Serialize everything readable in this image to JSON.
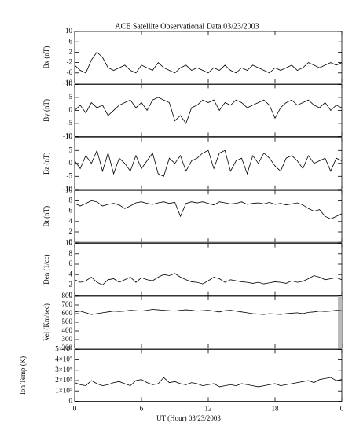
{
  "chart_data": [
    {
      "type": "line",
      "title": "ACE Satellite Observational Data   03/23/2003",
      "ylabel": "Bx (nT)",
      "color": "#000000",
      "xlim": [
        0,
        24
      ],
      "x": [
        0,
        0.5,
        1,
        1.5,
        2,
        2.5,
        3,
        3.5,
        4,
        4.5,
        5,
        5.5,
        6,
        6.5,
        7,
        7.5,
        8,
        8.5,
        9,
        9.5,
        10,
        10.5,
        11,
        11.5,
        12,
        12.5,
        13,
        13.5,
        14,
        14.5,
        15,
        15.5,
        16,
        16.5,
        17,
        17.5,
        18,
        18.5,
        19,
        19.5,
        20,
        20.5,
        21,
        21.5,
        22,
        22.5,
        23,
        23.5,
        24
      ],
      "values": [
        -3,
        -5,
        -6,
        -1,
        2,
        0,
        -4,
        -5,
        -4,
        -3,
        -5,
        -6,
        -3,
        -4,
        -5,
        -2,
        -4,
        -5,
        -6,
        -4,
        -3,
        -5,
        -4,
        -5,
        -6,
        -4,
        -5,
        -3,
        -5,
        -6,
        -4,
        -5,
        -3,
        -4,
        -5,
        -6,
        -4,
        -5,
        -4,
        -3,
        -5,
        -4,
        -2,
        -3,
        -4,
        -3,
        -2,
        -3,
        -2
      ],
      "ylim": [
        -10,
        10
      ],
      "yticks": [
        -10,
        -6,
        -2,
        2,
        6,
        10
      ]
    },
    {
      "type": "line",
      "ylabel": "By (nT)",
      "color": "#000000",
      "xlim": [
        0,
        24
      ],
      "x": [
        0,
        0.5,
        1,
        1.5,
        2,
        2.5,
        3,
        3.5,
        4,
        4.5,
        5,
        5.5,
        6,
        6.5,
        7,
        7.5,
        8,
        8.5,
        9,
        9.5,
        10,
        10.5,
        11,
        11.5,
        12,
        12.5,
        13,
        13.5,
        14,
        14.5,
        15,
        15.5,
        16,
        16.5,
        17,
        17.5,
        18,
        18.5,
        19,
        19.5,
        20,
        20.5,
        21,
        21.5,
        22,
        22.5,
        23,
        23.5,
        24
      ],
      "values": [
        0,
        2,
        -1,
        3,
        1,
        2,
        -2,
        0,
        2,
        3,
        4,
        1,
        3,
        0,
        4,
        5,
        4,
        3,
        -4,
        -2,
        -5,
        1,
        2,
        4,
        3,
        4,
        0,
        3,
        2,
        4,
        3,
        1,
        2,
        3,
        4,
        2,
        -3,
        1,
        3,
        4,
        2,
        3,
        4,
        2,
        1,
        3,
        0,
        2,
        1
      ],
      "ylim": [
        -10,
        10
      ],
      "yticks": [
        -10,
        -5,
        0,
        5,
        10
      ]
    },
    {
      "type": "line",
      "ylabel": "Bz (nT)",
      "color": "#000000",
      "xlim": [
        0,
        24
      ],
      "x": [
        0,
        0.5,
        1,
        1.5,
        2,
        2.5,
        3,
        3.5,
        4,
        4.5,
        5,
        5.5,
        6,
        6.5,
        7,
        7.5,
        8,
        8.5,
        9,
        9.5,
        10,
        10.5,
        11,
        11.5,
        12,
        12.5,
        13,
        13.5,
        14,
        14.5,
        15,
        15.5,
        16,
        16.5,
        17,
        17.5,
        18,
        18.5,
        19,
        19.5,
        20,
        20.5,
        21,
        21.5,
        22,
        22.5,
        23,
        23.5,
        24
      ],
      "values": [
        1,
        -2,
        3,
        0,
        5,
        -3,
        4,
        -4,
        2,
        0,
        -3,
        3,
        -2,
        1,
        4,
        -4,
        -5,
        2,
        0,
        3,
        -3,
        1,
        2,
        4,
        5,
        -2,
        4,
        5,
        -3,
        1,
        2,
        -4,
        3,
        0,
        4,
        2,
        -1,
        -3,
        2,
        3,
        1,
        -2,
        3,
        0,
        1,
        2,
        -3,
        2,
        1
      ],
      "ylim": [
        -10,
        10
      ],
      "yticks": [
        -10,
        -5,
        0,
        5,
        10
      ]
    },
    {
      "type": "line",
      "ylabel": "Bt (nT)",
      "color": "#000000",
      "xlim": [
        0,
        24
      ],
      "x": [
        0,
        0.5,
        1,
        1.5,
        2,
        2.5,
        3,
        3.5,
        4,
        4.5,
        5,
        5.5,
        6,
        6.5,
        7,
        7.5,
        8,
        8.5,
        9,
        9.5,
        10,
        10.5,
        11,
        11.5,
        12,
        12.5,
        13,
        13.5,
        14,
        14.5,
        15,
        15.5,
        16,
        16.5,
        17,
        17.5,
        18,
        18.5,
        19,
        19.5,
        20,
        20.5,
        21,
        21.5,
        22,
        22.5,
        23,
        23.5,
        24
      ],
      "values": [
        7.5,
        7,
        7.5,
        8,
        7.8,
        7,
        7.3,
        7.5,
        7.2,
        6.5,
        7,
        7.6,
        7.8,
        7.5,
        7.3,
        7.6,
        7.8,
        7.5,
        7.7,
        5,
        7.5,
        7.8,
        7.6,
        7.8,
        7.5,
        7.2,
        7.8,
        7.6,
        7.4,
        7.5,
        7.8,
        7.3,
        7.5,
        7.6,
        7.4,
        7.7,
        7.3,
        7.5,
        7.2,
        7.4,
        7.6,
        7.2,
        6.5,
        6,
        6.3,
        5,
        4.5,
        5,
        5.5
      ],
      "ylim": [
        0,
        10
      ],
      "yticks": [
        0,
        2,
        4,
        6,
        8,
        10
      ]
    },
    {
      "type": "line",
      "ylabel": "Den (1/cc)",
      "color": "#000000",
      "xlim": [
        0,
        24
      ],
      "x": [
        0,
        0.5,
        1,
        1.5,
        2,
        2.5,
        3,
        3.5,
        4,
        4.5,
        5,
        5.5,
        6,
        6.5,
        7,
        7.5,
        8,
        8.5,
        9,
        9.5,
        10,
        10.5,
        11,
        11.5,
        12,
        12.5,
        13,
        13.5,
        14,
        14.5,
        15,
        15.5,
        16,
        16.5,
        17,
        17.5,
        18,
        18.5,
        19,
        19.5,
        20,
        20.5,
        21,
        21.5,
        22,
        22.5,
        23,
        23.5,
        24
      ],
      "values": [
        3,
        2.5,
        2.8,
        3.5,
        2.5,
        2,
        3,
        3.2,
        2.5,
        3,
        3.5,
        2.5,
        3.4,
        3,
        2.8,
        3.5,
        4,
        3.8,
        4.2,
        3.5,
        3,
        2.6,
        2.5,
        2.2,
        2.8,
        3.5,
        3.2,
        2.5,
        3,
        2.8,
        2.6,
        2.5,
        2.3,
        2.5,
        2.2,
        2.4,
        2.6,
        2.5,
        2.3,
        2.8,
        2.5,
        2.7,
        3.2,
        3.8,
        3.5,
        3,
        3.2,
        3.4,
        3
      ],
      "ylim": [
        0,
        10
      ],
      "yticks": [
        0,
        2,
        4,
        6,
        8,
        10
      ]
    },
    {
      "type": "line",
      "ylabel": "Vel (Km/sec)",
      "color": "#000000",
      "xlim": [
        0,
        24
      ],
      "x": [
        0,
        0.5,
        1,
        1.5,
        2,
        2.5,
        3,
        3.5,
        4,
        4.5,
        5,
        5.5,
        6,
        6.5,
        7,
        7.5,
        8,
        8.5,
        9,
        9.5,
        10,
        10.5,
        11,
        11.5,
        12,
        12.5,
        13,
        13.5,
        14,
        14.5,
        15,
        15.5,
        16,
        16.5,
        17,
        17.5,
        18,
        18.5,
        19,
        19.5,
        20,
        20.5,
        21,
        21.5,
        22,
        22.5,
        23,
        23.5,
        24
      ],
      "values": [
        620,
        630,
        610,
        590,
        600,
        610,
        620,
        630,
        625,
        630,
        640,
        635,
        630,
        640,
        650,
        645,
        640,
        635,
        630,
        640,
        645,
        640,
        630,
        635,
        640,
        630,
        620,
        635,
        640,
        630,
        620,
        610,
        600,
        595,
        590,
        600,
        595,
        590,
        600,
        605,
        610,
        600,
        615,
        620,
        630,
        625,
        630,
        640,
        635
      ],
      "ylim": [
        200,
        800
      ],
      "yticks": [
        200,
        300,
        400,
        500,
        600,
        700,
        800
      ]
    },
    {
      "type": "line",
      "ylabel": "Ion Temp (K)",
      "xlabel": "UT (Hour)   03/23/2003",
      "color": "#000000",
      "xlim": [
        0,
        24
      ],
      "xticks": [
        0,
        6,
        12,
        18,
        {
          "value": 24,
          "label": "0"
        }
      ],
      "x": [
        0,
        0.5,
        1,
        1.5,
        2,
        2.5,
        3,
        3.5,
        4,
        4.5,
        5,
        5.5,
        6,
        6.5,
        7,
        7.5,
        8,
        8.5,
        9,
        9.5,
        10,
        10.5,
        11,
        11.5,
        12,
        12.5,
        13,
        13.5,
        14,
        14.5,
        15,
        15.5,
        16,
        16.5,
        17,
        17.5,
        18,
        18.5,
        19,
        19.5,
        20,
        20.5,
        21,
        21.5,
        22,
        22.5,
        23,
        23.5,
        24
      ],
      "values": [
        180000,
        160000,
        150000,
        200000,
        170000,
        150000,
        160000,
        180000,
        190000,
        170000,
        150000,
        200000,
        210000,
        180000,
        160000,
        170000,
        230000,
        180000,
        190000,
        170000,
        160000,
        180000,
        170000,
        150000,
        160000,
        170000,
        140000,
        150000,
        160000,
        150000,
        170000,
        160000,
        150000,
        140000,
        150000,
        160000,
        170000,
        150000,
        160000,
        170000,
        180000,
        190000,
        200000,
        180000,
        210000,
        220000,
        230000,
        200000,
        210000
      ],
      "ylim": [
        0,
        500000
      ],
      "yticks": [
        0,
        {
          "value": 100000,
          "label": "1×10⁵"
        },
        {
          "value": 200000,
          "label": "2×10⁵"
        },
        {
          "value": 300000,
          "label": "3×10⁵"
        },
        {
          "value": 400000,
          "label": "4×10⁵"
        },
        {
          "value": 500000,
          "label": "5×10⁵"
        }
      ]
    }
  ]
}
